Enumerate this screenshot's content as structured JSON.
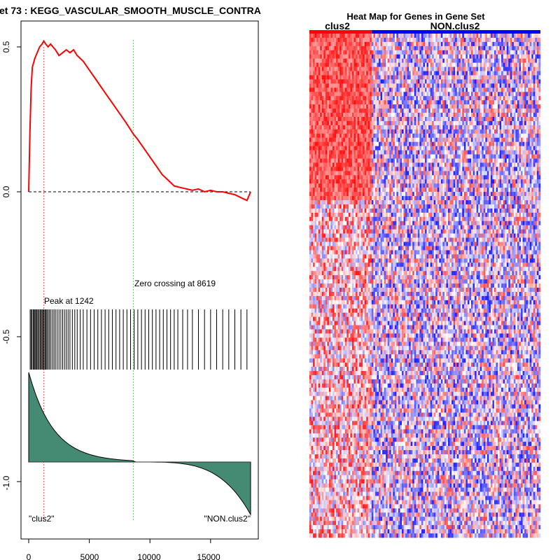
{
  "chart_data": [
    {
      "type": "line",
      "title": "et  73 : KEGG_VASCULAR_SMOOTH_MUSCLE_CONTRA",
      "xlabel": "",
      "ylabel": "",
      "xlim": [
        0,
        18600
      ],
      "ylim": [
        -1.15,
        0.58
      ],
      "x_ticks": [
        "0",
        "5000",
        "10000",
        "15000"
      ],
      "y_ticks": [
        "0.5",
        "0.0",
        "-0.5",
        "-1.0"
      ],
      "running_es": {
        "x": [
          0,
          100,
          200,
          300,
          500,
          700,
          900,
          1100,
          1242,
          1400,
          1600,
          1800,
          2000,
          2200,
          2500,
          2800,
          3100,
          3400,
          3700,
          4000,
          4500,
          5000,
          5500,
          6000,
          6500,
          7000,
          7500,
          8000,
          8619,
          9000,
          9500,
          10000,
          10500,
          11000,
          11500,
          12000,
          12500,
          13000,
          13500,
          14000,
          14500,
          15000,
          15500,
          16000,
          16500,
          17000,
          17500,
          18000,
          18300
        ],
        "y": [
          0.0,
          0.2,
          0.36,
          0.43,
          0.46,
          0.48,
          0.5,
          0.51,
          0.52,
          0.51,
          0.5,
          0.51,
          0.5,
          0.49,
          0.47,
          0.48,
          0.49,
          0.48,
          0.49,
          0.47,
          0.45,
          0.42,
          0.39,
          0.36,
          0.33,
          0.3,
          0.27,
          0.24,
          0.2,
          0.18,
          0.15,
          0.12,
          0.09,
          0.06,
          0.04,
          0.02,
          0.015,
          0.01,
          0.005,
          0.01,
          0.0,
          0.005,
          0.0,
          0.0,
          -0.005,
          -0.01,
          -0.02,
          -0.03,
          0.0
        ]
      },
      "hit_positions": [
        120,
        200,
        280,
        380,
        450,
        520,
        600,
        680,
        760,
        850,
        940,
        1020,
        1100,
        1180,
        1260,
        1340,
        1420,
        1500,
        1600,
        1700,
        1820,
        1950,
        2080,
        2200,
        2350,
        2500,
        2650,
        2800,
        2950,
        3100,
        3250,
        3400,
        3600,
        3800,
        4000,
        4250,
        4500,
        4800,
        5100,
        5400,
        5700,
        6000,
        6300,
        6600,
        6900,
        7200,
        7500,
        7800,
        8100,
        8400,
        8700,
        9000,
        9300,
        9600,
        9900,
        10200,
        10500,
        10800,
        11100,
        11400,
        11700,
        12000,
        12300,
        12700,
        13100,
        13500,
        14000,
        14500,
        15000,
        15500,
        16000,
        16500,
        17000,
        17500,
        18000
      ],
      "peak_label": "Peak at 1242",
      "peak_x": 1242,
      "zero_cross_label": "Zero crossing at 8619",
      "zero_cross_x": 8619,
      "left_label": "\"clus2\"",
      "right_label": "\"NON.clus2\"",
      "colors": {
        "es_line": "#ff0000",
        "ranked_fill": "#458b74",
        "peak_line": "#ff6666",
        "zero_line": "#66cc66"
      }
    },
    {
      "type": "heatmap",
      "title": "Heat Map for Genes in Gene Set",
      "group_labels": [
        "clus2",
        "NON.clus2"
      ],
      "group_split_fraction": 0.27,
      "rows": 121,
      "cols": 130,
      "colors": {
        "group1": "#ff0000",
        "group2": "#0000ff",
        "high": "#ff0000",
        "low": "#0000ff",
        "mid": "#ffffff"
      }
    }
  ]
}
